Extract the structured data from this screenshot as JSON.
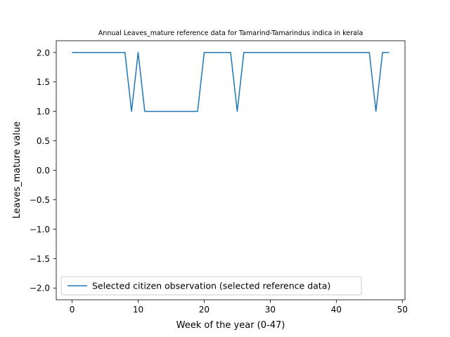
{
  "chart_data": {
    "type": "line",
    "title": "Annual Leaves_mature reference data for Tamarind-Tamarindus indica in kerala",
    "xlabel": "Week of the year (0-47)",
    "ylabel": "Leaves_mature value",
    "xlim": [
      -2.4,
      50.4
    ],
    "ylim": [
      -2.2,
      2.2
    ],
    "xticks": [
      0,
      10,
      20,
      30,
      40,
      50
    ],
    "xtick_labels": [
      "0",
      "10",
      "20",
      "30",
      "40",
      "50"
    ],
    "yticks": [
      2.0,
      1.5,
      1.0,
      0.5,
      0.0,
      -0.5,
      -1.0,
      -1.5,
      -2.0
    ],
    "ytick_labels": [
      "2.0",
      "1.5",
      "1.0",
      "0.5",
      "0.0",
      "−0.5",
      "−1.0",
      "−1.5",
      "−2.0"
    ],
    "grid": false,
    "legend_position": "lower-left",
    "series": [
      {
        "name": "Selected citizen observation (selected reference data)",
        "color": "#1f77b4",
        "x": [
          0,
          1,
          2,
          3,
          4,
          5,
          6,
          7,
          8,
          9,
          10,
          11,
          12,
          13,
          14,
          15,
          16,
          17,
          18,
          19,
          20,
          21,
          22,
          23,
          24,
          25,
          26,
          27,
          28,
          29,
          30,
          31,
          32,
          33,
          34,
          35,
          36,
          37,
          38,
          39,
          40,
          41,
          42,
          43,
          44,
          45,
          46,
          47,
          48
        ],
        "y": [
          2,
          2,
          2,
          2,
          2,
          2,
          2,
          2,
          2,
          1,
          2,
          1,
          1,
          1,
          1,
          1,
          1,
          1,
          1,
          1,
          2,
          2,
          2,
          2,
          2,
          1,
          2,
          2,
          2,
          2,
          2,
          2,
          2,
          2,
          2,
          2,
          2,
          2,
          2,
          2,
          2,
          2,
          2,
          2,
          2,
          2,
          1,
          2,
          2
        ]
      }
    ]
  }
}
